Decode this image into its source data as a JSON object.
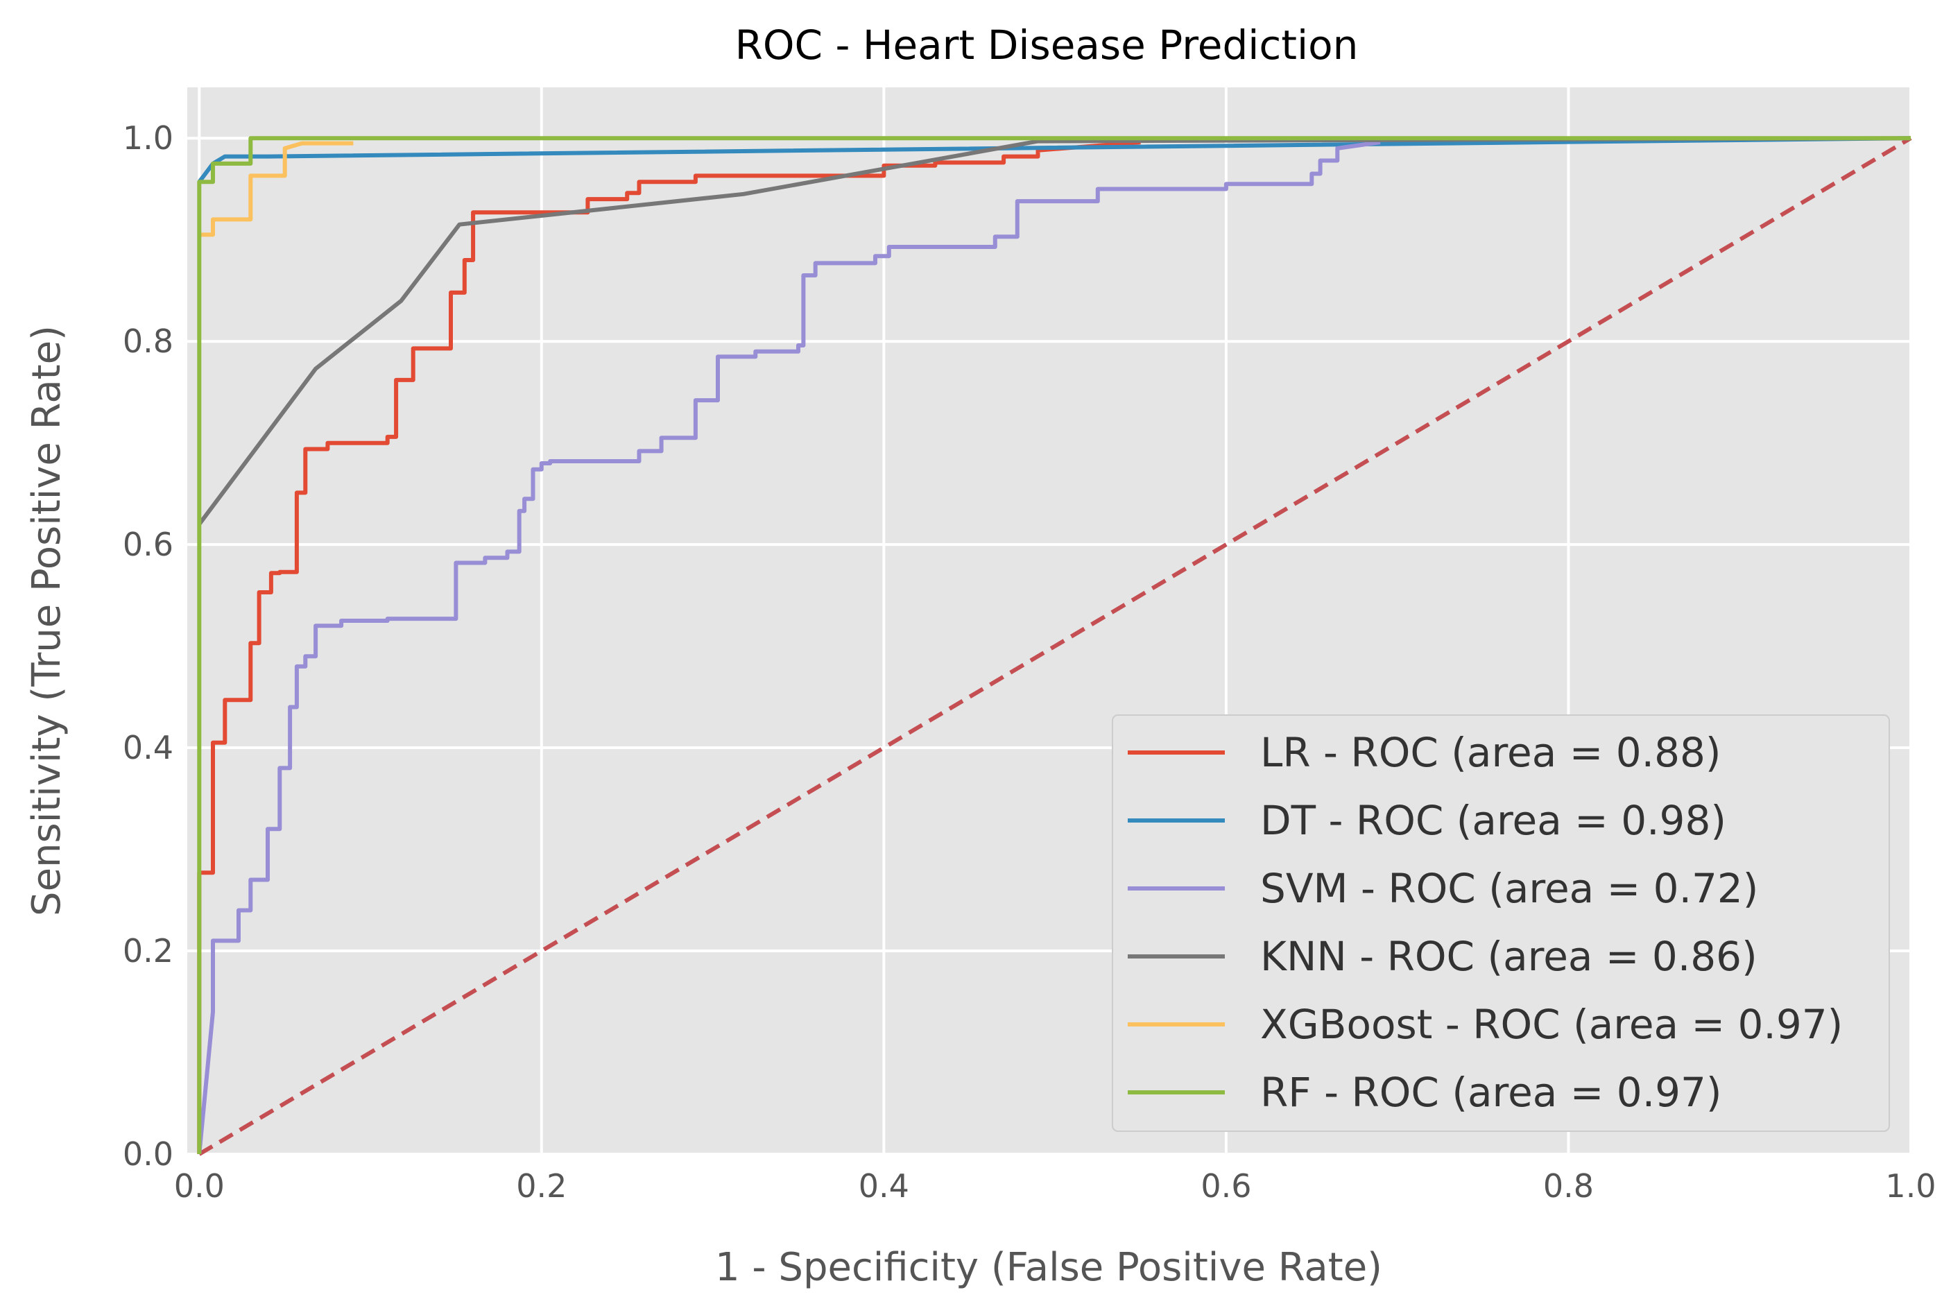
{
  "chart_data": {
    "type": "line",
    "title": "ROC - Heart Disease Prediction",
    "xlabel": "1 - Specificity (False Positive Rate)",
    "ylabel": "Sensitivity (True Positive Rate)",
    "xlim": [
      -0.007,
      1.0
    ],
    "ylim": [
      0.0,
      1.05
    ],
    "xticks": [
      "0.0",
      "0.2",
      "0.4",
      "0.6",
      "0.8",
      "1.0"
    ],
    "yticks": [
      "0.0",
      "0.2",
      "0.4",
      "0.6",
      "0.8",
      "1.0"
    ],
    "grid": true,
    "legend_position": "lower-right",
    "background": "#e5e5e5",
    "series": [
      {
        "name": "LR - ROC (area = 0.88)",
        "color": "#e24a33",
        "x": [
          0,
          0,
          0.008,
          0.008,
          0.015,
          0.015,
          0.03,
          0.03,
          0.035,
          0.035,
          0.042,
          0.042,
          0.047,
          0.047,
          0.057,
          0.057,
          0.062,
          0.062,
          0.075,
          0.075,
          0.11,
          0.11,
          0.115,
          0.115,
          0.125,
          0.125,
          0.147,
          0.147,
          0.155,
          0.155,
          0.16,
          0.16,
          0.227,
          0.227,
          0.25,
          0.25,
          0.257,
          0.257,
          0.29,
          0.29,
          0.4,
          0.4,
          0.43,
          0.43,
          0.47,
          0.47,
          0.49,
          0.49,
          0.55
        ],
        "y": [
          0,
          0.277,
          0.277,
          0.405,
          0.405,
          0.447,
          0.447,
          0.503,
          0.503,
          0.553,
          0.553,
          0.572,
          0.572,
          0.573,
          0.573,
          0.651,
          0.651,
          0.694,
          0.694,
          0.7,
          0.7,
          0.706,
          0.706,
          0.762,
          0.762,
          0.793,
          0.793,
          0.848,
          0.848,
          0.88,
          0.88,
          0.927,
          0.927,
          0.94,
          0.94,
          0.946,
          0.946,
          0.957,
          0.957,
          0.963,
          0.963,
          0.973,
          0.973,
          0.976,
          0.976,
          0.982,
          0.982,
          0.988,
          0.996
        ]
      },
      {
        "name": "DT - ROC (area = 0.98)",
        "color": "#348abd",
        "x": [
          0,
          0.008,
          0.015,
          0.04,
          1.0
        ],
        "y": [
          0.957,
          0.975,
          0.982,
          0.982,
          1.0
        ]
      },
      {
        "name": "SVM - ROC (area = 0.72)",
        "color": "#988ed5",
        "x": [
          0,
          0.008,
          0.008,
          0.023,
          0.023,
          0.03,
          0.03,
          0.04,
          0.04,
          0.047,
          0.047,
          0.053,
          0.053,
          0.057,
          0.057,
          0.062,
          0.062,
          0.068,
          0.068,
          0.083,
          0.083,
          0.11,
          0.11,
          0.15,
          0.15,
          0.167,
          0.167,
          0.18,
          0.18,
          0.187,
          0.187,
          0.19,
          0.19,
          0.195,
          0.195,
          0.2,
          0.2,
          0.205,
          0.205,
          0.257,
          0.257,
          0.27,
          0.27,
          0.29,
          0.29,
          0.303,
          0.303,
          0.325,
          0.325,
          0.35,
          0.35,
          0.353,
          0.353,
          0.36,
          0.36,
          0.395,
          0.395,
          0.403,
          0.403,
          0.465,
          0.465,
          0.478,
          0.478,
          0.525,
          0.525,
          0.6,
          0.6,
          0.65,
          0.65,
          0.655,
          0.655,
          0.665,
          0.665,
          0.69
        ],
        "y": [
          0,
          0.14,
          0.21,
          0.21,
          0.24,
          0.24,
          0.27,
          0.27,
          0.32,
          0.32,
          0.38,
          0.38,
          0.44,
          0.44,
          0.48,
          0.48,
          0.49,
          0.49,
          0.52,
          0.52,
          0.525,
          0.525,
          0.527,
          0.527,
          0.582,
          0.582,
          0.587,
          0.587,
          0.593,
          0.593,
          0.633,
          0.633,
          0.645,
          0.645,
          0.674,
          0.674,
          0.68,
          0.68,
          0.682,
          0.682,
          0.692,
          0.692,
          0.705,
          0.705,
          0.742,
          0.742,
          0.785,
          0.785,
          0.79,
          0.79,
          0.796,
          0.796,
          0.865,
          0.865,
          0.877,
          0.877,
          0.884,
          0.884,
          0.893,
          0.893,
          0.903,
          0.903,
          0.938,
          0.938,
          0.95,
          0.95,
          0.955,
          0.955,
          0.965,
          0.965,
          0.978,
          0.978,
          0.99,
          0.996
        ]
      },
      {
        "name": "KNN - ROC (area = 0.86)",
        "color": "#777777",
        "x": [
          0,
          0.068,
          0.118,
          0.152,
          0.318,
          0.49,
          1.0
        ],
        "y": [
          0.62,
          0.773,
          0.84,
          0.915,
          0.945,
          0.997,
          1.0
        ]
      },
      {
        "name": "XGBoost - ROC (area = 0.97)",
        "color": "#fbc15e",
        "x": [
          0,
          0.008,
          0.008,
          0.03,
          0.03,
          0.05,
          0.05,
          0.06,
          0.09
        ],
        "y": [
          0.905,
          0.905,
          0.92,
          0.92,
          0.963,
          0.963,
          0.99,
          0.995,
          0.995
        ]
      },
      {
        "name": "RF - ROC (area = 0.97)",
        "color": "#8eba42",
        "x": [
          0,
          0,
          0.008,
          0.008,
          0.03,
          0.03,
          1.0
        ],
        "y": [
          0,
          0.957,
          0.957,
          0.975,
          0.975,
          1.0,
          1.0
        ]
      },
      {
        "color": "#c44e52",
        "dashed": true,
        "x": [
          0,
          1.0
        ],
        "y": [
          0,
          1.0
        ]
      }
    ]
  }
}
